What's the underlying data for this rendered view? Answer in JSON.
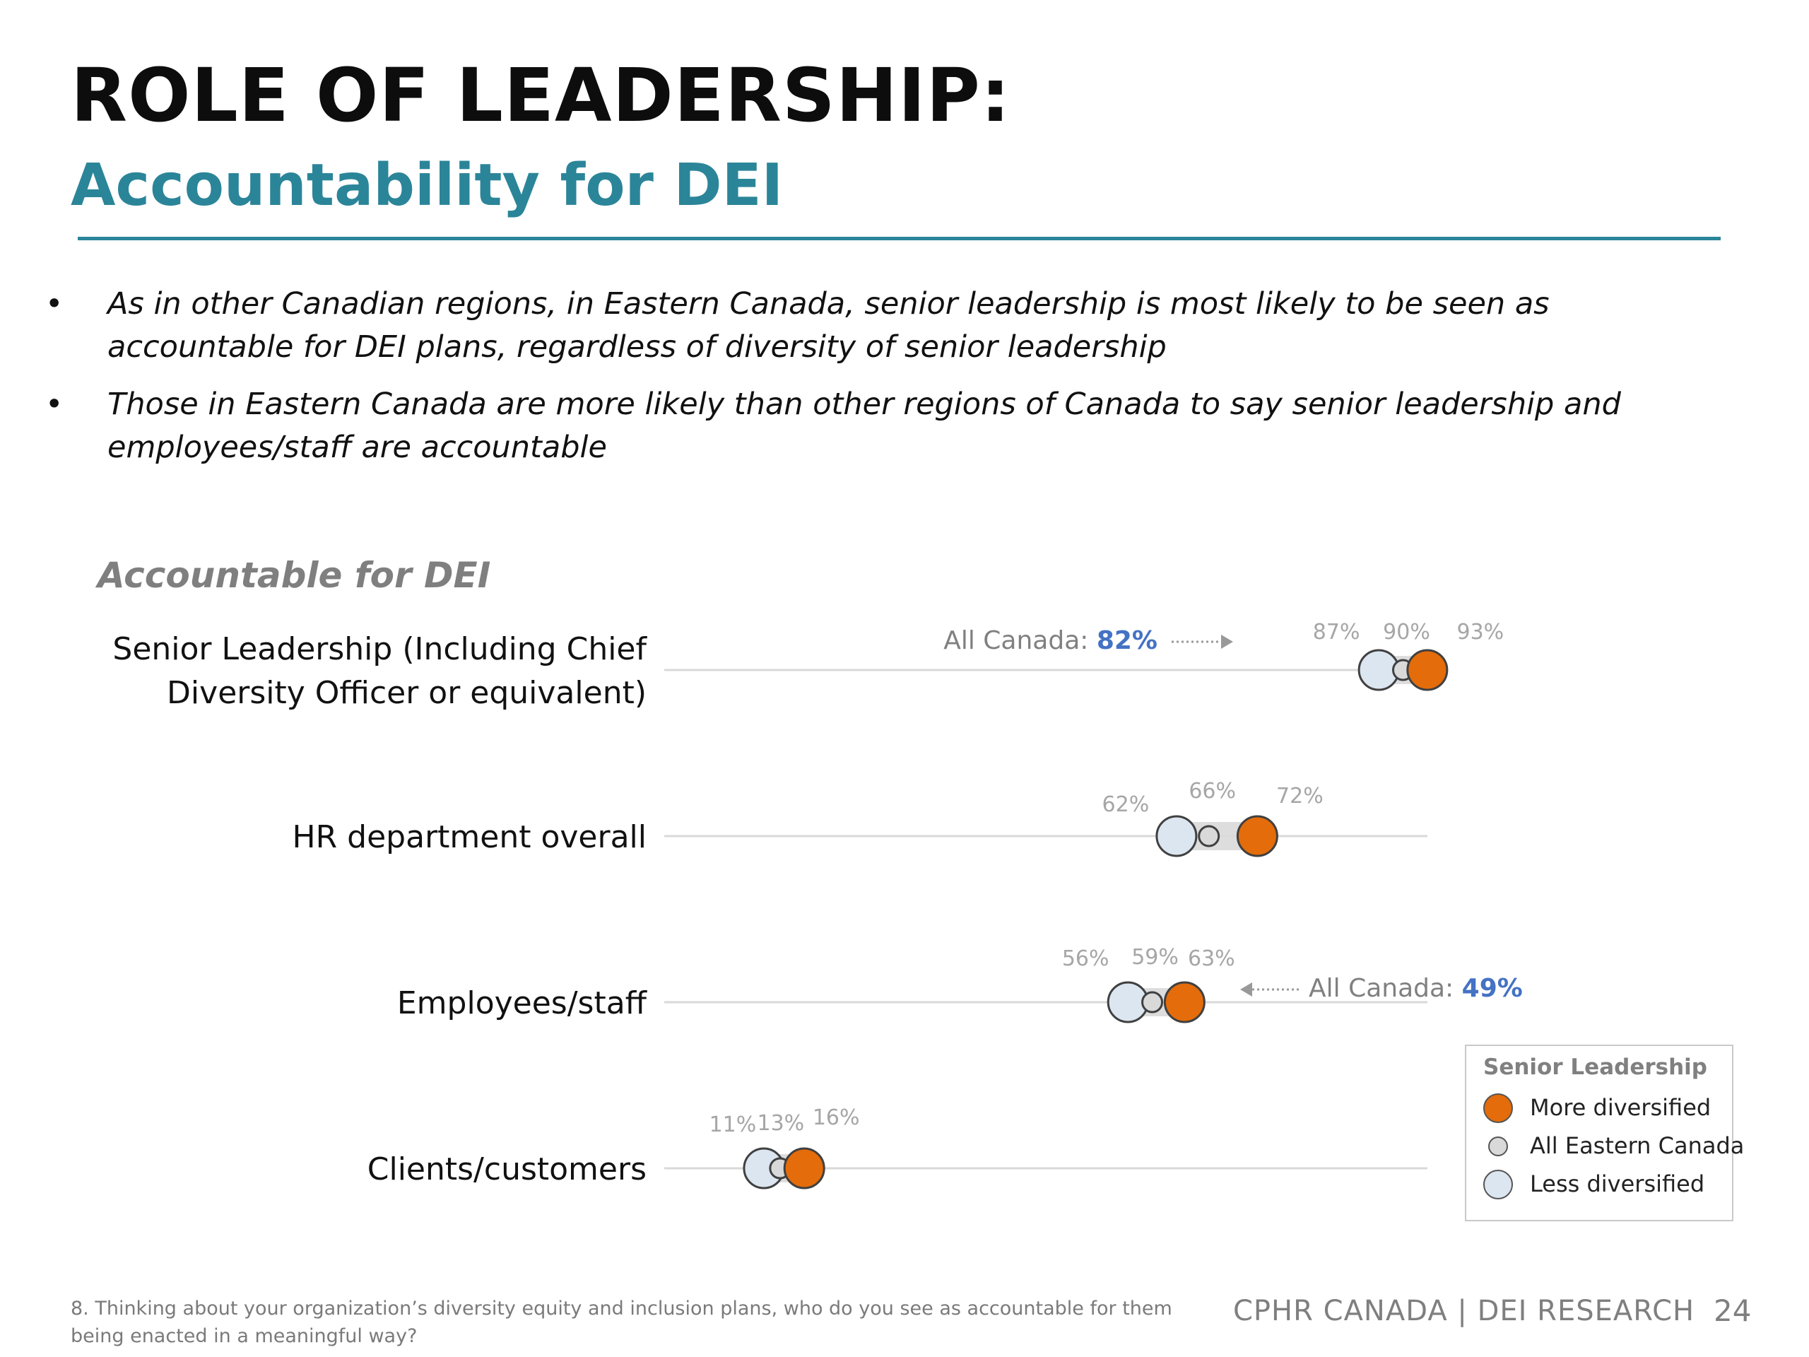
{
  "header": {
    "title": "ROLE OF LEADERSHIP:",
    "subtitle": "Accountability for DEI"
  },
  "bullets": [
    "As in other Canadian regions, in Eastern Canada, senior leadership is most likely to be seen as accountable for DEI plans, regardless of diversity of senior leadership",
    "Those in Eastern Canada are more likely than other regions of Canada to say senior leadership and employees/staff are accountable"
  ],
  "chart_data": {
    "type": "dot",
    "title": "Accountable for DEI",
    "xlim": [
      0,
      100
    ],
    "categories": [
      [
        "Senior Leadership (Including Chief",
        "Diversity Officer or equivalent)"
      ],
      [
        "HR department overall"
      ],
      [
        "Employees/staff"
      ],
      [
        "Clients/customers"
      ]
    ],
    "series": [
      {
        "name": "Less diversified",
        "values": [
          87,
          62,
          56,
          11
        ],
        "labels": [
          "87%",
          "62%",
          "56%",
          "11%"
        ]
      },
      {
        "name": "All Eastern Canada",
        "values": [
          90,
          66,
          59,
          13
        ],
        "labels": [
          "90%",
          "66%",
          "59%",
          "13%"
        ]
      },
      {
        "name": "More diversified",
        "values": [
          93,
          72,
          63,
          16
        ],
        "labels": [
          "93%",
          "72%",
          "63%",
          "16%"
        ]
      }
    ],
    "annotations": [
      {
        "category_index": 0,
        "prefix": "All Canada: ",
        "value_label": "82%",
        "side": "left"
      },
      {
        "category_index": 2,
        "prefix": "All Canada: ",
        "value_label": "49%",
        "side": "right"
      }
    ],
    "legend": {
      "title": "Senior Leadership",
      "placement": "bottom-right",
      "items": [
        "More diversified",
        "All Eastern Canada",
        "Less diversified"
      ]
    },
    "colors": {
      "more": "#e46c0a",
      "all": "#d9d9d9",
      "less": "#dce6f1",
      "outline": "#404040",
      "axis_line": "#d9d9d9",
      "annotation_value": "#4472c4",
      "label_text": "#a6a6a6"
    }
  },
  "footer": {
    "footnote": "8. Thinking about your organization’s diversity equity and inclusion plans, who do you see as accountable for them being enacted in a meaningful way?",
    "brand": "CPHR CANADA  |  DEI RESEARCH",
    "page": "24"
  }
}
